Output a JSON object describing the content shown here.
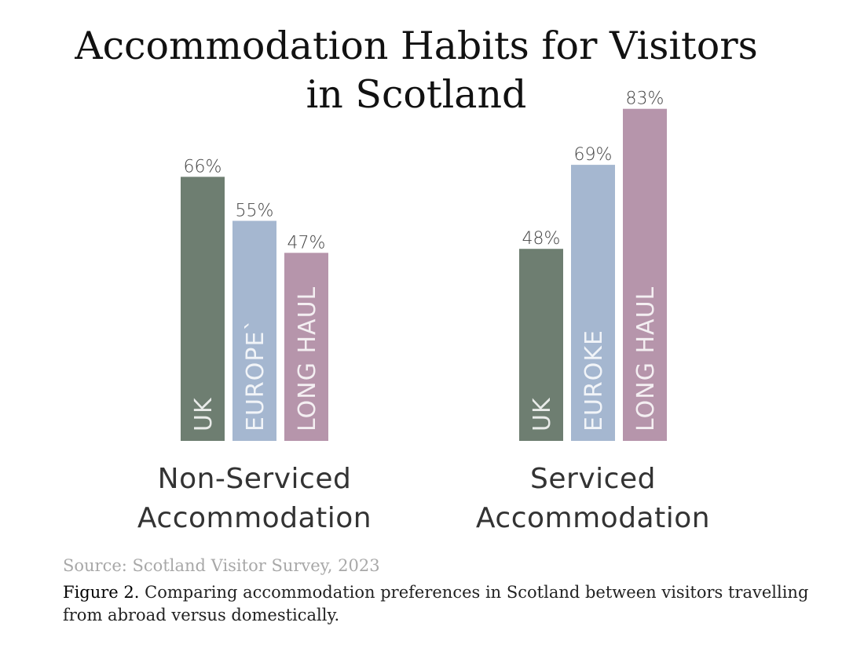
{
  "chart_data": {
    "type": "bar",
    "title_lines": [
      "Accommodation Habits for Visitors",
      "in Scotland"
    ],
    "ylim": [
      0,
      100
    ],
    "colors": [
      "#6e7e71",
      "#a5b7d0",
      "#b695ab"
    ],
    "groups": [
      {
        "name_lines": [
          "Non-Serviced",
          "Accommodation"
        ],
        "bars": [
          {
            "label": "UK",
            "value": 66,
            "value_label": "66%"
          },
          {
            "label": "EUROPE`",
            "value": 55,
            "value_label": "55%"
          },
          {
            "label": "LONG HAUL",
            "value": 47,
            "value_label": "47%"
          }
        ]
      },
      {
        "name_lines": [
          "Serviced",
          "Accommodation"
        ],
        "bars": [
          {
            "label": "UK",
            "value": 48,
            "value_label": "48%"
          },
          {
            "label": "EUROKE",
            "value": 69,
            "value_label": "69%"
          },
          {
            "label": "LONG HAUL",
            "value": 83,
            "value_label": "83%"
          }
        ]
      }
    ]
  },
  "footer": {
    "source": "Source: Scotland Visitor Survey, 2023",
    "figure_label": "Figure 2.",
    "caption": "Comparing accommodation preferences in Scotland between visitors travelling from abroad versus domestically."
  }
}
